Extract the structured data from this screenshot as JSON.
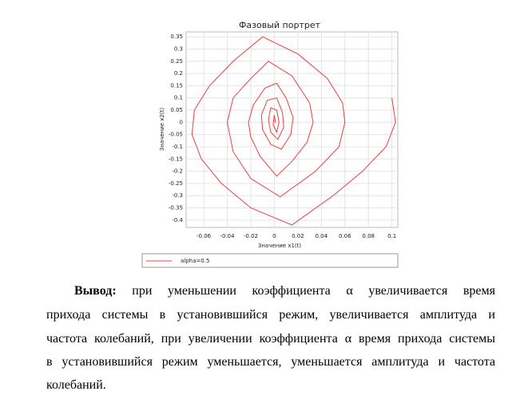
{
  "chart_data": {
    "type": "line",
    "title": "Фазовый портрет",
    "xlabel": "Значение x1(t)",
    "ylabel": "Значение x2(t)",
    "xlim": [
      -0.075,
      0.105
    ],
    "xticks": [
      -0.06,
      -0.04,
      -0.02,
      0,
      0.02,
      0.04,
      0.06,
      0.08,
      0.1
    ],
    "ylim": [
      -0.43,
      0.37
    ],
    "yticks": [
      0.35,
      0.3,
      0.25,
      0.2,
      0.15,
      0.1,
      0.05,
      0,
      -0.05,
      -0.1,
      -0.15,
      -0.2,
      -0.25,
      -0.3,
      -0.35,
      -0.4
    ],
    "grid": true,
    "legend": "bottom",
    "series": [
      {
        "name": "alpha=0.5",
        "color": "#e8413f",
        "x": [
          0.1,
          0.103,
          0.095,
          0.075,
          0.05,
          0.015,
          -0.02,
          -0.045,
          -0.062,
          -0.07,
          -0.068,
          -0.055,
          -0.035,
          -0.01,
          0.02,
          0.045,
          0.058,
          0.06,
          0.055,
          0.035,
          0.005,
          -0.02,
          -0.035,
          -0.04,
          -0.035,
          -0.02,
          -0.005,
          0.015,
          0.03,
          0.033,
          0.028,
          0.015,
          0.002,
          -0.012,
          -0.02,
          -0.022,
          -0.018,
          -0.008,
          0.002,
          0.01,
          0.016,
          0.014,
          0.006,
          -0.003,
          -0.01,
          -0.011,
          -0.006,
          0.002,
          0.007,
          0.008,
          0.003,
          -0.003,
          -0.005,
          -0.003,
          0.002,
          0.004,
          0.002,
          -0.001,
          0,
          0.001
        ],
        "values": [
          0.1,
          0.0,
          -0.1,
          -0.2,
          -0.3,
          -0.42,
          -0.35,
          -0.25,
          -0.15,
          -0.05,
          0.05,
          0.15,
          0.25,
          0.35,
          0.28,
          0.18,
          0.08,
          0,
          -0.1,
          -0.2,
          -0.305,
          -0.23,
          -0.12,
          0,
          0.1,
          0.18,
          0.25,
          0.19,
          0.08,
          0,
          -0.08,
          -0.16,
          -0.22,
          -0.14,
          -0.06,
          0,
          0.07,
          0.14,
          0.16,
          0.1,
          0.02,
          -0.05,
          -0.11,
          -0.09,
          -0.03,
          0.03,
          0.09,
          0.1,
          0.04,
          -0.02,
          -0.07,
          -0.04,
          0.01,
          0.06,
          0.05,
          0,
          -0.04,
          -0.01,
          0.03,
          0
        ]
      }
    ]
  },
  "document": {
    "label": "Вывод:",
    "lines": [
      " при уменьшении коэффициента α увеличивается время",
      "прихода системы в установившийся режим, увеличивается амплитуда и",
      "частота колебаний, при увеличении коэффициента α время прихода системы",
      "в установившийся режим уменьшается, уменьшается амплитуда и частота",
      "колебаний."
    ]
  }
}
